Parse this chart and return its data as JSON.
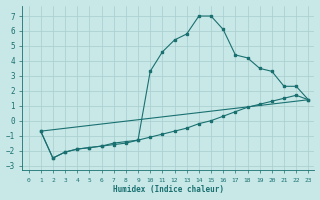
{
  "xlabel": "Humidex (Indice chaleur)",
  "background_color": "#c8e8e8",
  "grid_color": "#a8cece",
  "line_color": "#1a7070",
  "xlim": [
    -0.5,
    23.5
  ],
  "ylim": [
    -3.3,
    7.7
  ],
  "yticks": [
    -3,
    -2,
    -1,
    0,
    1,
    2,
    3,
    4,
    5,
    6,
    7
  ],
  "xticks": [
    0,
    1,
    2,
    3,
    4,
    5,
    6,
    7,
    8,
    9,
    10,
    11,
    12,
    13,
    14,
    15,
    16,
    17,
    18,
    19,
    20,
    21,
    22,
    23
  ],
  "curve1_x": [
    1,
    2,
    3,
    4,
    5,
    6,
    7,
    8,
    9,
    10,
    11,
    12,
    13,
    14,
    15,
    16,
    17,
    18,
    19,
    20,
    21,
    22,
    23
  ],
  "curve1_y": [
    -0.7,
    -2.5,
    -2.1,
    -1.9,
    -1.8,
    -1.7,
    -1.6,
    -1.5,
    -1.3,
    3.3,
    4.6,
    5.4,
    5.8,
    7.0,
    7.0,
    6.1,
    4.4,
    4.2,
    3.5,
    3.3,
    2.3,
    2.3,
    1.4
  ],
  "curve2_x": [
    1,
    2,
    3,
    4,
    5,
    6,
    7,
    8,
    9,
    10,
    11,
    12,
    13,
    14,
    15,
    16,
    17,
    18,
    19,
    20,
    21,
    22,
    23
  ],
  "curve2_y": [
    -0.7,
    -2.5,
    -2.1,
    -1.9,
    -1.8,
    -1.7,
    -1.5,
    -1.4,
    -1.3,
    -1.1,
    -0.9,
    -0.7,
    -0.5,
    -0.2,
    0.0,
    0.3,
    0.6,
    0.9,
    1.1,
    1.3,
    1.5,
    1.7,
    1.4
  ],
  "curve3_x": [
    1,
    23
  ],
  "curve3_y": [
    -0.7,
    1.4
  ]
}
